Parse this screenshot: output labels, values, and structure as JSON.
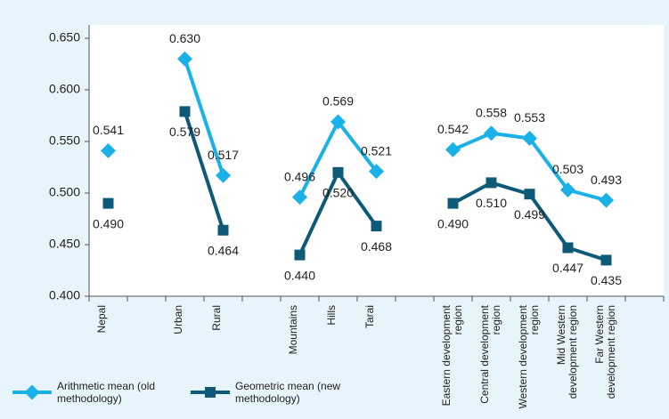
{
  "chart_data": {
    "type": "line",
    "categories": [
      "Nepal",
      null,
      "Urban",
      "Rural",
      null,
      "Mountains",
      "Hills",
      "Tarai",
      null,
      "Eastern development region",
      "Central development region",
      "Western development region",
      "Mid Western development region",
      "Far Western development region",
      null
    ],
    "series": [
      {
        "name": "Arithmetic mean (old methodology)",
        "color": "#1ab0e8",
        "values": [
          0.541,
          null,
          0.63,
          0.517,
          null,
          0.496,
          0.569,
          0.521,
          null,
          0.542,
          0.558,
          0.553,
          0.503,
          0.493,
          null
        ],
        "value_labels": [
          "0.541",
          null,
          "0.630",
          "0.517",
          null,
          "0.496",
          "0.569",
          "0.521",
          null,
          "0.542",
          "0.558",
          "0.553",
          "0.503",
          "0.493",
          null
        ]
      },
      {
        "name": "Geometric mean (new methodology)",
        "color": "#0d5a78",
        "values": [
          0.49,
          null,
          0.579,
          0.464,
          null,
          0.44,
          0.52,
          0.468,
          null,
          0.49,
          0.51,
          0.499,
          0.447,
          0.435,
          null
        ],
        "value_labels": [
          "0.490",
          null,
          "0.579",
          "0.464",
          null,
          "0.440",
          "0.520",
          "0.468",
          null,
          "0.490",
          "0.510",
          "0.499",
          "0.447",
          "0.435",
          null
        ]
      }
    ],
    "ylim": [
      0.4,
      0.65
    ],
    "yticks": [
      {
        "value": 0.4,
        "label": "0.400"
      },
      {
        "value": 0.45,
        "label": "0.450"
      },
      {
        "value": 0.5,
        "label": "0.500"
      },
      {
        "value": 0.55,
        "label": "0.550"
      },
      {
        "value": 0.6,
        "label": "0.600"
      },
      {
        "value": 0.65,
        "label": "0.650"
      }
    ],
    "legend": "bottom-left"
  }
}
